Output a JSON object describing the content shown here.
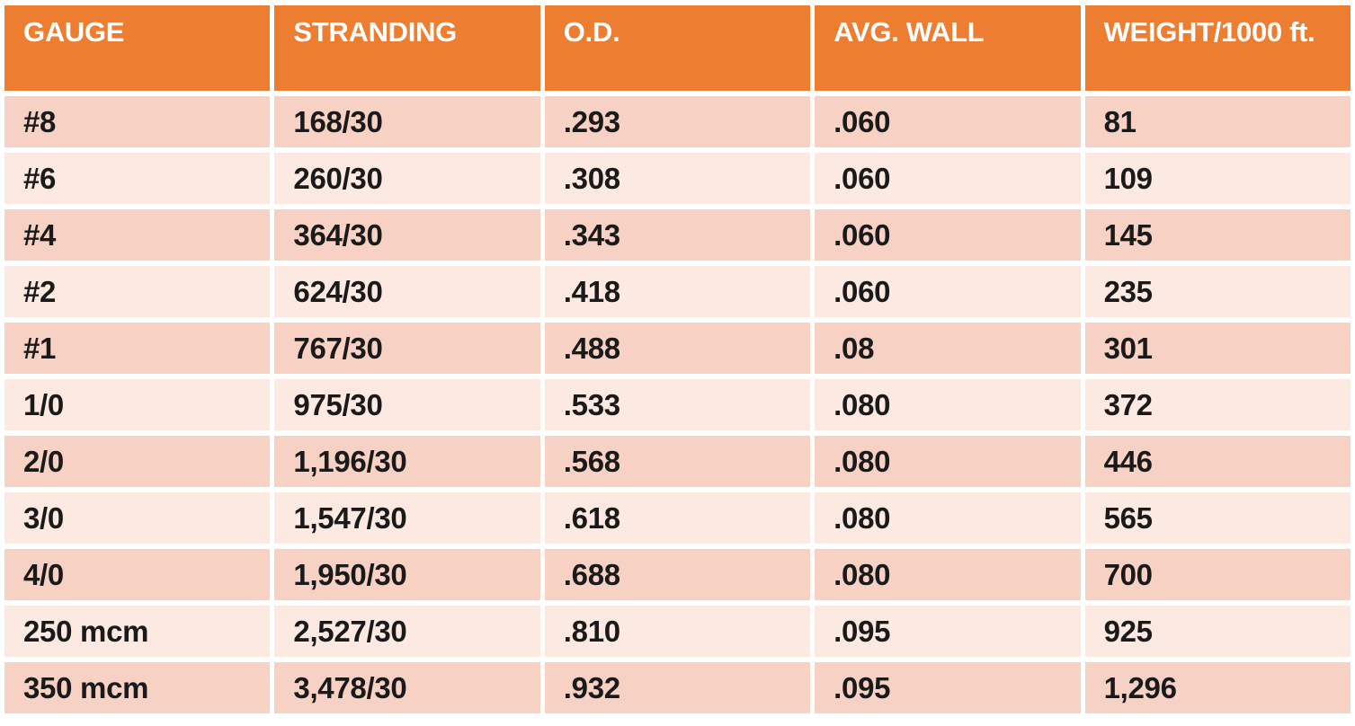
{
  "colors": {
    "header_bg": "#ED7D31",
    "header_text": "#FFFFFF",
    "row_band_dark": "#F7D2C4",
    "row_band_light": "#FBE9E2",
    "body_text": "#1A1A1A",
    "page_bg": "#FFFFFF"
  },
  "table": {
    "columns": [
      {
        "label": "GAUGE"
      },
      {
        "label": "STRANDING"
      },
      {
        "label": "O.D."
      },
      {
        "label": "AVG. WALL"
      },
      {
        "label": "WEIGHT/1000 ft."
      }
    ],
    "rows": [
      {
        "gauge": "#8",
        "stranding": "168/30",
        "od": ".293",
        "avg_wall": ".060",
        "weight": "81"
      },
      {
        "gauge": "#6",
        "stranding": "260/30",
        "od": ".308",
        "avg_wall": ".060",
        "weight": "109"
      },
      {
        "gauge": "#4",
        "stranding": "364/30",
        "od": ".343",
        "avg_wall": ".060",
        "weight": "145"
      },
      {
        "gauge": "#2",
        "stranding": "624/30",
        "od": ".418",
        "avg_wall": ".060",
        "weight": "235"
      },
      {
        "gauge": "#1",
        "stranding": "767/30",
        "od": ".488",
        "avg_wall": ".08",
        "weight": "301"
      },
      {
        "gauge": "1/0",
        "stranding": "975/30",
        "od": ".533",
        "avg_wall": ".080",
        "weight": "372"
      },
      {
        "gauge": "2/0",
        "stranding": "1,196/30",
        "od": ".568",
        "avg_wall": ".080",
        "weight": "446"
      },
      {
        "gauge": "3/0",
        "stranding": "1,547/30",
        "od": ".618",
        "avg_wall": ".080",
        "weight": "565"
      },
      {
        "gauge": "4/0",
        "stranding": "1,950/30",
        "od": ".688",
        "avg_wall": ".080",
        "weight": "700"
      },
      {
        "gauge": "250 mcm",
        "stranding": "2,527/30",
        "od": ".810",
        "avg_wall": ".095",
        "weight": "925"
      },
      {
        "gauge": "350 mcm",
        "stranding": "3,478/30",
        "od": ".932",
        "avg_wall": ".095",
        "weight": "1,296"
      }
    ]
  }
}
